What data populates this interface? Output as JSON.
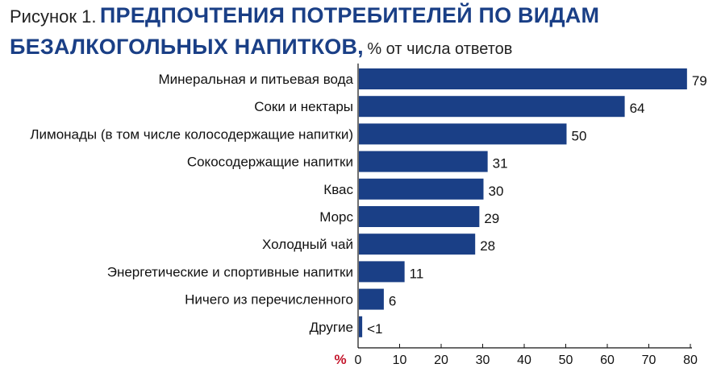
{
  "figure": {
    "prefix": "Рисунок 1.",
    "title_line1": "ПРЕДПОЧТЕНИЯ ПОТРЕБИТЕЛЕЙ ПО ВИДАМ",
    "title_line2": "БЕЗАЛКОГОЛЬНЫХ НАПИТКОВ,",
    "unit_note": "% от числа ответов"
  },
  "chart_data": {
    "type": "bar",
    "orientation": "horizontal",
    "title": "ПРЕДПОЧТЕНИЯ ПОТРЕБИТЕЛЕЙ ПО ВИДАМ БЕЗАЛКОГОЛЬНЫХ НАПИТКОВ, % от числа ответов",
    "categories": [
      "Минеральная и питьевая вода",
      "Соки и нектары",
      "Лимонады (в том числе колосодержащие напитки)",
      "Сокосодержащие напитки",
      "Квас",
      "Морс",
      "Холодный чай",
      "Энергетические и спортивные напитки",
      "Ничего из перечисленного",
      "Другие"
    ],
    "values": [
      79,
      64,
      50,
      31,
      30,
      29,
      28,
      11,
      6,
      0.8
    ],
    "value_labels": [
      "79",
      "64",
      "50",
      "31",
      "30",
      "29",
      "28",
      "11",
      "6",
      "<1"
    ],
    "xlabel": "%",
    "xlim": [
      0,
      80
    ],
    "xticks": [
      0,
      10,
      20,
      30,
      40,
      50,
      60,
      70,
      80
    ],
    "bar_color": "#1a3f86",
    "grid": false,
    "legend": "none"
  }
}
